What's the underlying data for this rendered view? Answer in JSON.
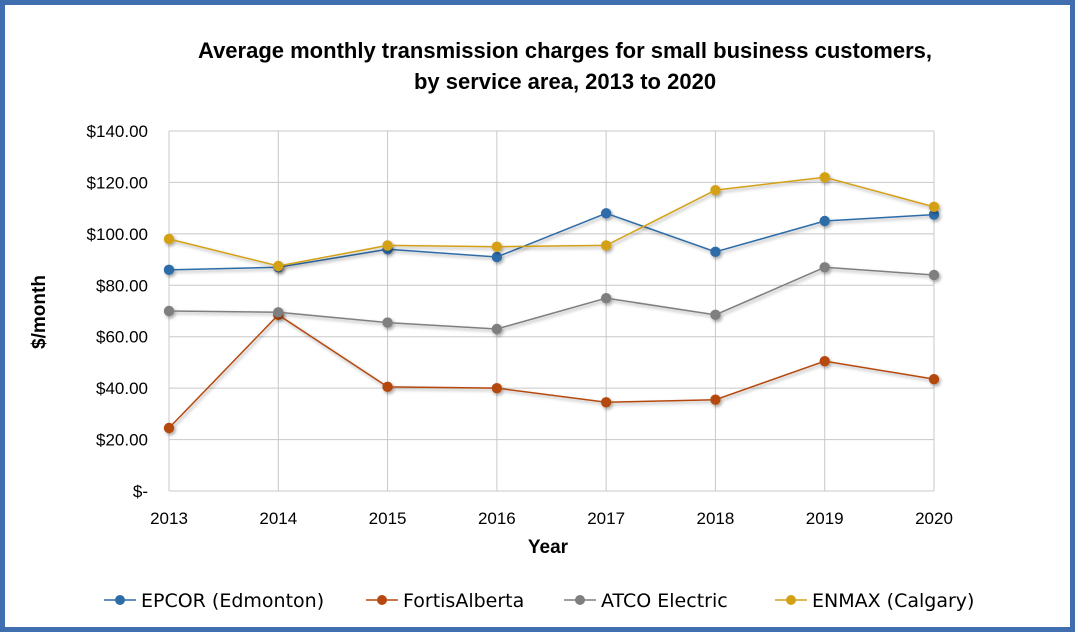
{
  "chart_data": {
    "type": "line",
    "title_line1": "Average monthly transmission charges for small business customers,",
    "title_line2": "by service area, 2013 to 2020",
    "xlabel": "Year",
    "ylabel": "$/month",
    "x": [
      "2013",
      "2014",
      "2015",
      "2016",
      "2017",
      "2018",
      "2019",
      "2020"
    ],
    "ylim": [
      0,
      140
    ],
    "yticks": [
      {
        "value": 0,
        "label": "$-"
      },
      {
        "value": 20,
        "label": "$20.00"
      },
      {
        "value": 40,
        "label": "$40.00"
      },
      {
        "value": 60,
        "label": "$60.00"
      },
      {
        "value": 80,
        "label": "$80.00"
      },
      {
        "value": 100,
        "label": "$100.00"
      },
      {
        "value": 120,
        "label": "$120.00"
      },
      {
        "value": 140,
        "label": "$140.00"
      }
    ],
    "grid": true,
    "legend_position": "bottom",
    "series": [
      {
        "name": "EPCOR (Edmonton)",
        "color": "#2e6ca8",
        "values": [
          86,
          87,
          94,
          91,
          108,
          93,
          105,
          107.5
        ]
      },
      {
        "name": "FortisAlberta",
        "color": "#b5480f",
        "values": [
          24.5,
          68.5,
          40.5,
          40,
          34.5,
          35.5,
          50.5,
          43.5
        ]
      },
      {
        "name": "ATCO Electric",
        "color": "#7f7f7f",
        "values": [
          70,
          69.5,
          65.5,
          63,
          75,
          68.5,
          87,
          84
        ]
      },
      {
        "name": "ENMAX (Calgary)",
        "color": "#d4a017",
        "values": [
          98,
          87.5,
          95.5,
          95,
          95.5,
          117,
          122,
          110.5
        ]
      }
    ]
  }
}
